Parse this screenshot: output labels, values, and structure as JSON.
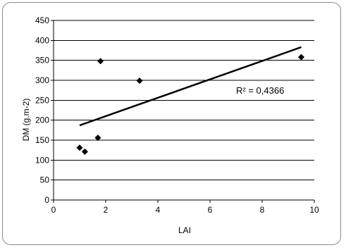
{
  "chart_data": {
    "type": "scatter",
    "xlabel": "LAI",
    "ylabel": "DM (g.m-2)",
    "xlim": [
      0,
      10
    ],
    "ylim": [
      0,
      450
    ],
    "x_ticks": [
      "0",
      "2",
      "4",
      "6",
      "8",
      "10"
    ],
    "y_ticks": [
      "0",
      "50",
      "100",
      "150",
      "200",
      "250",
      "300",
      "350",
      "400",
      "450"
    ],
    "grid": "horizontal",
    "marker": "diamond",
    "series": [
      {
        "points": [
          {
            "x": 1.0,
            "y": 131
          },
          {
            "x": 1.2,
            "y": 121
          },
          {
            "x": 1.7,
            "y": 156
          },
          {
            "x": 1.8,
            "y": 348
          },
          {
            "x": 3.3,
            "y": 299
          },
          {
            "x": 9.5,
            "y": 358
          }
        ]
      }
    ],
    "trendline": {
      "type": "linear",
      "x_start": 1.0,
      "y_start": 187,
      "x_end": 9.5,
      "y_end": 383,
      "label": "R² = 0,4366"
    },
    "colors": {
      "marker": "#000000",
      "grid": "#000000",
      "trendline": "#000000"
    }
  }
}
